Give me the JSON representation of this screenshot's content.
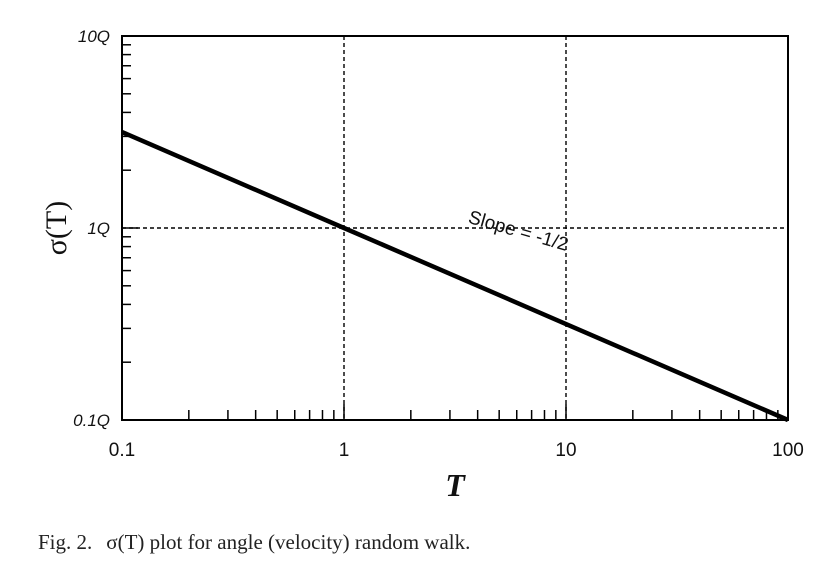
{
  "chart_data": {
    "type": "line",
    "x_scale": "log",
    "y_scale": "log",
    "xlim": [
      0.1,
      100
    ],
    "ylim": [
      0.1,
      10
    ],
    "x_ticks": [
      {
        "value": 0.1,
        "label": "0.1"
      },
      {
        "value": 1,
        "label": "1"
      },
      {
        "value": 10,
        "label": "10"
      },
      {
        "value": 100,
        "label": "100"
      }
    ],
    "y_ticks": [
      {
        "value": 0.1,
        "label": "0.1Q"
      },
      {
        "value": 1,
        "label": "1Q"
      },
      {
        "value": 10,
        "label": "10Q"
      }
    ],
    "xlabel": "T",
    "ylabel": "σ(T)",
    "grid": "dashed at decades",
    "series": [
      {
        "x": [
          0.1,
          1,
          10,
          100
        ],
        "y": [
          3.162,
          1.0,
          0.3162,
          0.1
        ],
        "color": "#000000"
      }
    ],
    "annotation": {
      "text": "Slope = -1/2",
      "x": 6.0,
      "y": 0.9
    }
  },
  "caption": {
    "label": "Fig. 2.",
    "text": "σ(T) plot for angle (velocity) random walk."
  }
}
